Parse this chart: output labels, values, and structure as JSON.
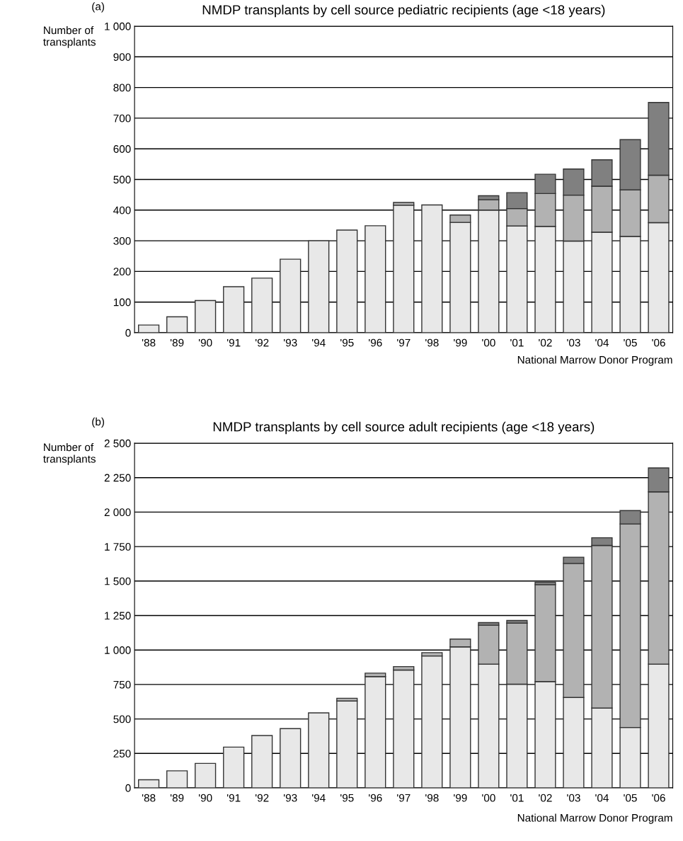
{
  "chart_data": [
    {
      "type": "bar",
      "title": "NMDP transplants by cell source pediatric recipients (age <18 years)",
      "ylabel": "Number of\ntransplants",
      "annotations": [
        "(a)",
        "National Marrow Donor Program"
      ],
      "categories": [
        "'88",
        "'89",
        "'90",
        "'91",
        "'92",
        "'93",
        "'94",
        "'95",
        "'96",
        "'97",
        "'98",
        "'99",
        "'00",
        "'01",
        "'02",
        "'03",
        "'04",
        "'05",
        "'06"
      ],
      "stacked": true,
      "series": [
        {
          "color": "#e8e8e8",
          "values": [
            25,
            52,
            105,
            150,
            178,
            240,
            300,
            335,
            349,
            416,
            417,
            360,
            400,
            348,
            347,
            299,
            328,
            314,
            359
          ]
        },
        {
          "color": "#b2b2b2",
          "values": [
            null,
            null,
            null,
            null,
            null,
            null,
            null,
            null,
            null,
            9,
            null,
            24,
            34,
            57,
            107,
            150,
            150,
            152,
            155
          ]
        },
        {
          "color": "#808080",
          "values": [
            null,
            null,
            null,
            null,
            null,
            null,
            null,
            null,
            null,
            null,
            null,
            null,
            13,
            52,
            63,
            85,
            86,
            164,
            237
          ]
        }
      ],
      "ylim": [
        0,
        1000
      ],
      "yticks": [
        0,
        100,
        200,
        300,
        400,
        500,
        600,
        700,
        800,
        900,
        {
          "value": 1000,
          "label": "1 000"
        }
      ],
      "grid": "y"
    },
    {
      "type": "bar",
      "title": "NMDP transplants by cell source adult recipients (age <18 years)",
      "ylabel": "Number of\ntransplants",
      "annotations": [
        "(b)",
        "National Marrow Donor Program"
      ],
      "categories": [
        "'88",
        "'89",
        "'90",
        "'91",
        "'92",
        "'93",
        "'94",
        "'95",
        "'96",
        "'97",
        "'98",
        "'99",
        "'00",
        "'01",
        "'02",
        "'03",
        "'04",
        "'05",
        "'06"
      ],
      "stacked": true,
      "series": [
        {
          "color": "#e8e8e8",
          "values": [
            59,
            124,
            178,
            296,
            380,
            430,
            544,
            630,
            807,
            855,
            957,
            1023,
            898,
            752,
            771,
            656,
            579,
            438,
            898
          ]
        },
        {
          "color": "#b2b2b2",
          "values": [
            null,
            null,
            null,
            null,
            null,
            null,
            null,
            20,
            25,
            25,
            24,
            56,
            282,
            443,
            703,
            972,
            1179,
            1476,
            1249
          ]
        },
        {
          "color": "#808080",
          "values": [
            null,
            null,
            null,
            null,
            null,
            null,
            null,
            null,
            null,
            null,
            null,
            null,
            19,
            19,
            18,
            45,
            56,
            97,
            173
          ]
        }
      ],
      "ylim": [
        0,
        2500
      ],
      "yticks": [
        0,
        250,
        500,
        750,
        {
          "value": 1000,
          "label": "1 000"
        },
        {
          "value": 1250,
          "label": "1 250"
        },
        {
          "value": 1500,
          "label": "1 500"
        },
        {
          "value": 1750,
          "label": "1 750"
        },
        {
          "value": 2000,
          "label": "2 000"
        },
        {
          "value": 2250,
          "label": "2 250"
        },
        {
          "value": 2500,
          "label": "2 500"
        }
      ],
      "grid": "y"
    }
  ]
}
